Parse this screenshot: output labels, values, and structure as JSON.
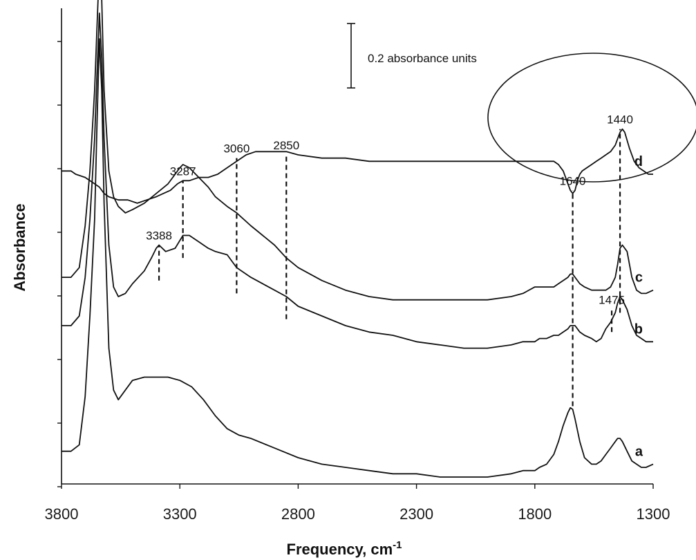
{
  "chart_data": {
    "type": "line",
    "xlabel": "Frequency, cm",
    "xlabel_superscript": "-1",
    "ylabel": "Absorbance",
    "xlim": [
      3800,
      1300
    ],
    "x_reversed": true,
    "x_ticks": [
      3800,
      3300,
      2800,
      2300,
      1800,
      1300
    ],
    "y_tick_labels": false,
    "scale_bar": {
      "label": "0.2 absorbance units",
      "value": 0.2
    },
    "series": [
      {
        "name": "a",
        "x": [
          3800,
          3760,
          3725,
          3700,
          3680,
          3660,
          3650,
          3640,
          3630,
          3620,
          3600,
          3580,
          3560,
          3530,
          3500,
          3450,
          3400,
          3350,
          3300,
          3250,
          3200,
          3150,
          3100,
          3050,
          3000,
          2900,
          2800,
          2700,
          2600,
          2500,
          2400,
          2350,
          2300,
          2200,
          2100,
          2000,
          1900,
          1850,
          1800,
          1780,
          1750,
          1720,
          1700,
          1680,
          1660,
          1650,
          1640,
          1630,
          1610,
          1590,
          1560,
          1540,
          1520,
          1500,
          1480,
          1460,
          1450,
          1440,
          1430,
          1410,
          1390,
          1370,
          1350,
          1330,
          1300
        ],
        "y": [
          0.08,
          0.08,
          0.1,
          0.25,
          0.5,
          0.8,
          1.1,
          1.36,
          1.2,
          0.85,
          0.4,
          0.27,
          0.24,
          0.27,
          0.3,
          0.31,
          0.31,
          0.31,
          0.3,
          0.28,
          0.24,
          0.19,
          0.15,
          0.13,
          0.12,
          0.09,
          0.06,
          0.04,
          0.03,
          0.02,
          0.01,
          0.01,
          0.01,
          0.0,
          0.0,
          0.0,
          0.01,
          0.02,
          0.02,
          0.03,
          0.04,
          0.07,
          0.11,
          0.16,
          0.2,
          0.215,
          0.21,
          0.18,
          0.11,
          0.06,
          0.04,
          0.04,
          0.05,
          0.07,
          0.09,
          0.11,
          0.12,
          0.12,
          0.11,
          0.08,
          0.05,
          0.04,
          0.03,
          0.03,
          0.04
        ]
      },
      {
        "name": "b",
        "x": [
          3800,
          3760,
          3725,
          3700,
          3680,
          3660,
          3650,
          3640,
          3630,
          3620,
          3600,
          3580,
          3560,
          3530,
          3500,
          3450,
          3420,
          3400,
          3388,
          3360,
          3320,
          3287,
          3260,
          3220,
          3180,
          3150,
          3100,
          3060,
          3000,
          2900,
          2850,
          2800,
          2700,
          2600,
          2500,
          2400,
          2300,
          2200,
          2100,
          2000,
          1900,
          1850,
          1800,
          1780,
          1750,
          1720,
          1700,
          1680,
          1660,
          1650,
          1640,
          1630,
          1610,
          1590,
          1560,
          1540,
          1520,
          1500,
          1480,
          1460,
          1450,
          1440,
          1430,
          1410,
          1390,
          1370,
          1350,
          1330,
          1300
        ],
        "y": [
          0.47,
          0.47,
          0.5,
          0.62,
          0.8,
          1.05,
          1.25,
          1.44,
          1.3,
          1.05,
          0.72,
          0.59,
          0.56,
          0.57,
          0.6,
          0.64,
          0.68,
          0.71,
          0.72,
          0.7,
          0.71,
          0.75,
          0.75,
          0.73,
          0.71,
          0.7,
          0.69,
          0.65,
          0.62,
          0.58,
          0.56,
          0.53,
          0.5,
          0.47,
          0.45,
          0.44,
          0.42,
          0.41,
          0.4,
          0.4,
          0.41,
          0.42,
          0.42,
          0.43,
          0.43,
          0.44,
          0.44,
          0.45,
          0.46,
          0.47,
          0.47,
          0.47,
          0.45,
          0.44,
          0.43,
          0.42,
          0.43,
          0.46,
          0.48,
          0.51,
          0.54,
          0.56,
          0.55,
          0.52,
          0.47,
          0.44,
          0.43,
          0.42,
          0.42
        ]
      },
      {
        "name": "c",
        "x": [
          3800,
          3760,
          3725,
          3700,
          3680,
          3660,
          3650,
          3640,
          3630,
          3620,
          3600,
          3580,
          3560,
          3530,
          3500,
          3450,
          3400,
          3350,
          3320,
          3300,
          3287,
          3260,
          3220,
          3180,
          3150,
          3100,
          3060,
          3000,
          2900,
          2850,
          2800,
          2700,
          2600,
          2500,
          2400,
          2300,
          2200,
          2100,
          2000,
          1900,
          1850,
          1800,
          1780,
          1750,
          1720,
          1700,
          1680,
          1660,
          1650,
          1640,
          1630,
          1610,
          1590,
          1560,
          1540,
          1520,
          1500,
          1480,
          1460,
          1450,
          1440,
          1430,
          1410,
          1390,
          1370,
          1350,
          1330,
          1300
        ],
        "y": [
          0.62,
          0.62,
          0.65,
          0.78,
          0.95,
          1.2,
          1.4,
          1.59,
          1.48,
          1.2,
          0.95,
          0.87,
          0.84,
          0.82,
          0.83,
          0.85,
          0.88,
          0.91,
          0.94,
          0.96,
          0.97,
          0.96,
          0.93,
          0.9,
          0.87,
          0.84,
          0.82,
          0.78,
          0.72,
          0.68,
          0.65,
          0.61,
          0.58,
          0.56,
          0.55,
          0.55,
          0.55,
          0.55,
          0.55,
          0.56,
          0.57,
          0.59,
          0.59,
          0.59,
          0.59,
          0.6,
          0.61,
          0.62,
          0.63,
          0.63,
          0.62,
          0.6,
          0.59,
          0.58,
          0.58,
          0.58,
          0.58,
          0.59,
          0.62,
          0.66,
          0.71,
          0.72,
          0.7,
          0.62,
          0.58,
          0.57,
          0.57,
          0.58
        ]
      },
      {
        "name": "d",
        "x": [
          3800,
          3760,
          3740,
          3700,
          3660,
          3640,
          3620,
          3600,
          3560,
          3520,
          3480,
          3440,
          3400,
          3370,
          3340,
          3310,
          3287,
          3260,
          3220,
          3180,
          3140,
          3100,
          3060,
          3020,
          2980,
          2950,
          2900,
          2850,
          2800,
          2700,
          2600,
          2500,
          2400,
          2300,
          2200,
          2100,
          2000,
          1900,
          1800,
          1750,
          1720,
          1700,
          1680,
          1670,
          1660,
          1650,
          1640,
          1630,
          1620,
          1610,
          1600,
          1580,
          1560,
          1540,
          1520,
          1500,
          1480,
          1460,
          1450,
          1440,
          1430,
          1420,
          1400,
          1380,
          1360,
          1340,
          1320,
          1300
        ],
        "y": [
          0.95,
          0.95,
          0.94,
          0.93,
          0.91,
          0.9,
          0.88,
          0.87,
          0.86,
          0.86,
          0.85,
          0.86,
          0.87,
          0.88,
          0.89,
          0.91,
          0.92,
          0.92,
          0.93,
          0.93,
          0.94,
          0.96,
          0.98,
          1.0,
          1.01,
          1.01,
          1.01,
          1.01,
          1.0,
          0.99,
          0.99,
          0.98,
          0.98,
          0.98,
          0.98,
          0.98,
          0.98,
          0.98,
          0.98,
          0.98,
          0.98,
          0.97,
          0.95,
          0.93,
          0.91,
          0.89,
          0.88,
          0.89,
          0.92,
          0.94,
          0.95,
          0.96,
          0.97,
          0.98,
          0.99,
          1.0,
          1.01,
          1.03,
          1.05,
          1.07,
          1.08,
          1.07,
          1.02,
          0.98,
          0.96,
          0.95,
          0.94,
          0.94
        ]
      }
    ],
    "markers": [
      {
        "label": "3388",
        "x": 3388,
        "y_from": 0.61,
        "y_to": 0.72
      },
      {
        "label": "3287",
        "x": 3287,
        "y_from": 0.68,
        "y_to": 0.92
      },
      {
        "label": "3060",
        "x": 3060,
        "y_from": 0.57,
        "y_to": 0.99
      },
      {
        "label": "2850",
        "x": 2850,
        "y_from": 0.49,
        "y_to": 1.0
      },
      {
        "label": "1640",
        "x": 1640,
        "y_from": 0.22,
        "y_to": 0.89
      },
      {
        "label": "1475",
        "x": 1475,
        "y_from": 0.45,
        "y_to": 0.52
      },
      {
        "label": "1440",
        "x": 1440,
        "y_from": 0.51,
        "y_to": 1.08
      }
    ],
    "annotation": {
      "shape": "ellipse",
      "note": "circles peaks of curve d near 1640 and 1440"
    }
  }
}
